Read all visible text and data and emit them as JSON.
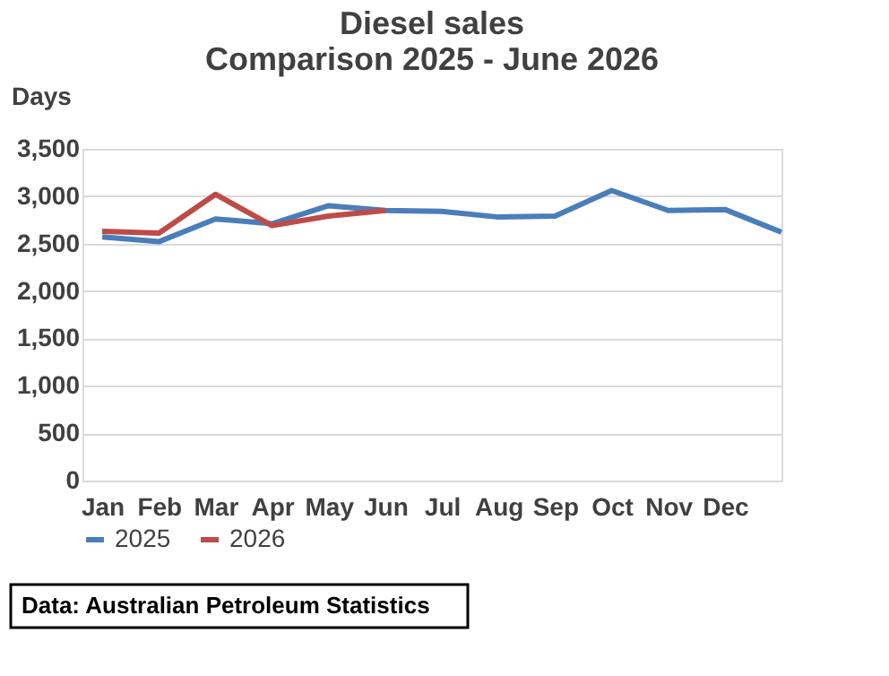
{
  "chart_data": {
    "type": "line",
    "title": [
      "Diesel sales",
      "Comparison 2025 - June 2026"
    ],
    "ylabel": "Days",
    "categories": [
      "Jan",
      "Feb",
      "Mar",
      "Apr",
      "May",
      "Jun",
      "Jul",
      "Aug",
      "Sep",
      "Oct",
      "Nov",
      "Dec",
      null
    ],
    "series": [
      {
        "name": "2025",
        "color": "#4a7ebb",
        "values": [
          2570,
          2520,
          2760,
          2710,
          2900,
          2850,
          2840,
          2780,
          2790,
          3060,
          2850,
          2860,
          2620
        ]
      },
      {
        "name": "2026",
        "color": "#be4b48",
        "values": [
          2630,
          2610,
          3020,
          2690,
          2790,
          2850,
          null,
          null,
          null,
          null,
          null,
          null,
          null
        ]
      }
    ],
    "ylim": [
      0,
      3500
    ],
    "yticks": [
      0,
      500,
      {
        "value": 1000,
        "label": "1,000"
      },
      {
        "value": 1500,
        "label": "1,500"
      },
      {
        "value": 2000,
        "label": "2,000"
      },
      {
        "value": 2500,
        "label": "2,500"
      },
      {
        "value": 3000,
        "label": "3,000"
      },
      {
        "value": 3500,
        "label": "3,500"
      }
    ],
    "grid": "y",
    "legend": "bottom",
    "marker": "none",
    "line_style": "solid",
    "annotations": [
      "Data: Australian Petroleum Statistics"
    ]
  }
}
